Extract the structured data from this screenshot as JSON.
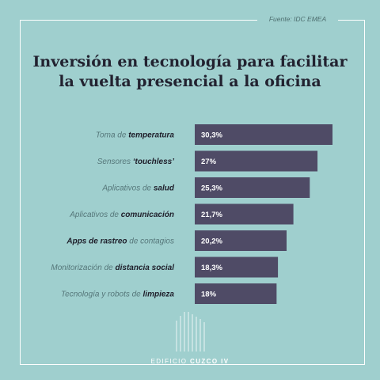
{
  "source": "Fuente: IDC EMEA",
  "title_lines": [
    "Inversión en tecnología para facilitar",
    "la vuelta presencial a la oficina"
  ],
  "brand": {
    "prefix": "EDIFICIO",
    "name": "CUZCO IV"
  },
  "colors": {
    "background": "#9fcfce",
    "bar": "#4f4b66",
    "accent_text": "#1e1e2a",
    "muted_text": "#56777a"
  },
  "chart_data": {
    "type": "bar",
    "orientation": "horizontal",
    "title": "Inversión en tecnología para facilitar la vuelta presencial a la oficina",
    "categories": [
      "Toma de temperatura",
      "Sensores ‘touchless’",
      "Aplicativos de salud",
      "Aplicativos de comunicación",
      "Apps de rastreo de contagios",
      "Monitorización de distancia social",
      "Tecnología y robots de limpieza"
    ],
    "category_parts": [
      [
        {
          "t": "Toma de ",
          "b": false
        },
        {
          "t": "temperatura",
          "b": true
        }
      ],
      [
        {
          "t": "Sensores ",
          "b": false
        },
        {
          "t": "‘touchless’",
          "b": true
        }
      ],
      [
        {
          "t": "Aplicativos de ",
          "b": false
        },
        {
          "t": "salud",
          "b": true
        }
      ],
      [
        {
          "t": "Aplicativos de ",
          "b": false
        },
        {
          "t": "comunicación",
          "b": true
        }
      ],
      [
        {
          "t": "Apps de rastreo",
          "b": true
        },
        {
          "t": " de contagios",
          "b": false
        }
      ],
      [
        {
          "t": "Monitorización de ",
          "b": false
        },
        {
          "t": "distancia social",
          "b": true
        }
      ],
      [
        {
          "t": "Tecnología y robots de ",
          "b": false
        },
        {
          "t": "limpieza",
          "b": true
        }
      ]
    ],
    "values": [
      30.3,
      27,
      25.3,
      21.7,
      20.2,
      18.3,
      18
    ],
    "value_labels": [
      "30,3%",
      "27%",
      "25,3%",
      "21,7%",
      "20,2%",
      "18,3%",
      "18%"
    ],
    "unit": "%",
    "xlim": [
      0,
      32
    ],
    "grid": false,
    "legend": "none"
  }
}
